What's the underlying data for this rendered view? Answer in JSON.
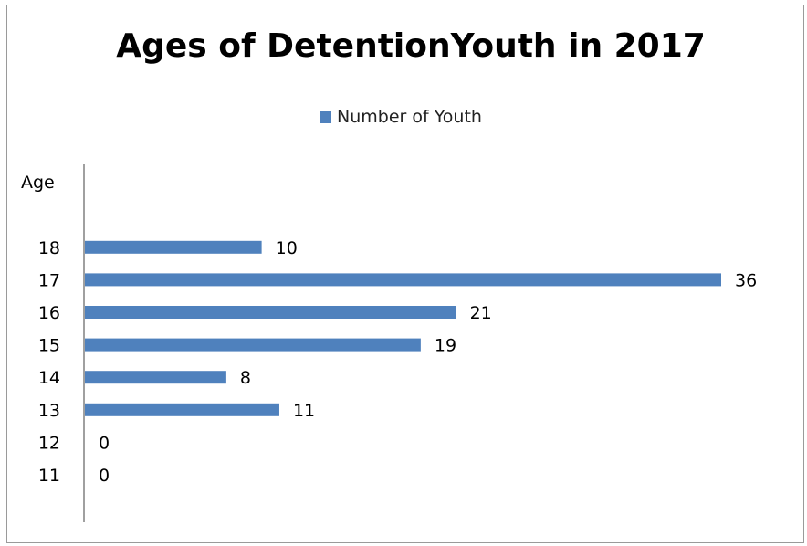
{
  "chart_data": {
    "type": "bar",
    "orientation": "horizontal",
    "title": "Ages of DetentionYouth in 2017",
    "ylabel": "Age",
    "categories": [
      "11",
      "12",
      "13",
      "14",
      "15",
      "16",
      "17",
      "18"
    ],
    "series": [
      {
        "name": "Number of Youth",
        "color": "#4f81bd",
        "values": [
          0,
          0,
          11,
          8,
          19,
          21,
          36,
          10
        ]
      }
    ],
    "xlim": [
      0,
      36
    ],
    "grid": false,
    "legend_position": "top"
  }
}
